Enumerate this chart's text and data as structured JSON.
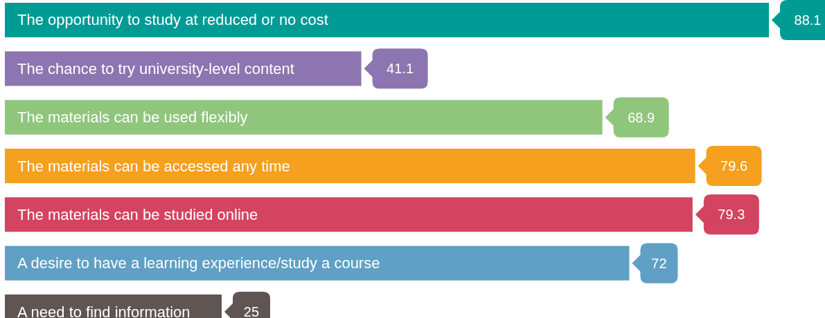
{
  "chart_data": {
    "type": "bar",
    "orientation": "horizontal",
    "data_labels": true,
    "categories": [
      "The opportunity to study at reduced or no cost",
      "The chance to try university-level content",
      "The materials can be used flexibly",
      "The materials can be accessed any time",
      "The materials can be studied online",
      "A desire to have a learning experience/study a course",
      "A need to find information"
    ],
    "values": [
      88.1,
      41.1,
      68.9,
      79.6,
      79.3,
      72,
      25
    ],
    "colors": [
      "#009b95",
      "#8c75b0",
      "#8fc67c",
      "#f5a01e",
      "#d4435f",
      "#5fa0c4",
      "#5f5552"
    ]
  }
}
